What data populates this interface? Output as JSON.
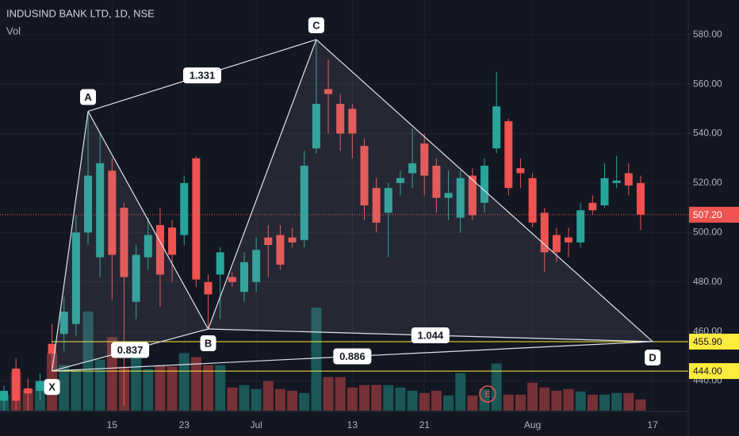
{
  "chart_data": {
    "type": "candlestick",
    "title": "INDUSIND BANK LTD, 1D, NSE",
    "subtitle": "Vol",
    "categories": [
      null,
      null,
      null,
      null,
      null,
      null,
      null,
      null,
      null,
      "15",
      null,
      null,
      null,
      null,
      null,
      "23",
      null,
      null,
      null,
      null,
      null,
      "Jul",
      null,
      null,
      null,
      null,
      null,
      null,
      null,
      "13",
      null,
      null,
      null,
      null,
      null,
      "21",
      null,
      null,
      null,
      null,
      null,
      null,
      null,
      null,
      "Aug",
      null,
      null,
      null,
      null,
      null,
      null,
      null,
      null,
      null,
      "17"
    ],
    "open": [
      432,
      445,
      437,
      436,
      455,
      459,
      463,
      500,
      490,
      525,
      510,
      472,
      490,
      503,
      502,
      499,
      530,
      480,
      483,
      482,
      476,
      480,
      498,
      499,
      498,
      497,
      534,
      558,
      552,
      550,
      535,
      518,
      508,
      520,
      524,
      536,
      527,
      514,
      506,
      523,
      512,
      534,
      545,
      526,
      522,
      508,
      499,
      498,
      496,
      512,
      511,
      520,
      524,
      520,
      null
    ],
    "high": [
      438,
      449,
      441,
      443,
      463,
      474,
      507,
      549,
      540,
      530,
      512,
      495,
      506,
      510,
      505,
      523,
      531,
      483,
      494,
      484,
      492,
      498,
      503,
      503,
      502,
      533,
      578,
      570,
      556,
      552,
      538,
      522,
      520,
      525,
      542,
      540,
      530,
      525,
      525,
      526,
      530,
      565,
      546,
      530,
      524,
      510,
      502,
      502,
      512,
      515,
      528,
      531,
      528,
      523,
      null
    ],
    "low": [
      428,
      428,
      428,
      432,
      444,
      452,
      458,
      495,
      482,
      473,
      430,
      465,
      485,
      470,
      480,
      495,
      478,
      461,
      465,
      478,
      472,
      476,
      482,
      485,
      494,
      494,
      532,
      540,
      533,
      530,
      505,
      500,
      490,
      515,
      518,
      515,
      508,
      505,
      500,
      505,
      508,
      532,
      515,
      518,
      502,
      484,
      488,
      490,
      494,
      507,
      510,
      518,
      515,
      501,
      null
    ],
    "close": [
      436,
      432,
      435,
      440,
      451,
      468,
      500,
      523,
      528,
      491,
      482,
      491,
      499,
      483,
      491,
      520,
      481,
      475,
      492,
      480,
      488,
      493,
      495,
      487,
      496,
      527,
      552,
      556,
      540,
      540,
      511,
      504,
      518,
      522,
      528,
      523,
      514,
      516,
      522,
      507,
      527,
      551,
      518,
      524,
      504,
      492,
      492,
      496,
      509,
      509,
      522,
      521,
      519,
      507.2,
      null
    ],
    "volume": [
      20,
      49,
      27,
      37,
      72,
      57,
      52,
      124,
      64,
      92,
      55,
      72,
      52,
      57,
      55,
      72,
      67,
      57,
      57,
      29,
      32,
      27,
      37,
      27,
      25,
      22,
      129,
      42,
      42,
      29,
      32,
      32,
      32,
      29,
      25,
      22,
      25,
      19,
      47,
      19,
      27,
      59,
      20,
      20,
      35,
      29,
      25,
      27,
      24,
      20,
      20,
      22,
      22,
      14,
      null
    ],
    "up_color": "#26a69a",
    "down_color": "#ef5350",
    "ylim": [
      428,
      594
    ],
    "yticks": [
      {
        "value": 440,
        "label": "440.00"
      },
      {
        "value": 460,
        "label": "460.00"
      },
      {
        "value": 480,
        "label": "480.00"
      },
      {
        "value": 500,
        "label": "500.00"
      },
      {
        "value": 520,
        "label": "520.00"
      },
      {
        "value": 540,
        "label": "540.00"
      },
      {
        "value": 560,
        "label": "560.00"
      },
      {
        "value": 580,
        "label": "580.00"
      }
    ],
    "grid": true,
    "pattern": {
      "points": [
        {
          "label": "X",
          "x": 4,
          "value": 444
        },
        {
          "label": "A",
          "x": 7,
          "value": 549
        },
        {
          "label": "B",
          "x": 17,
          "value": 461
        },
        {
          "label": "C",
          "x": 26,
          "value": 578
        },
        {
          "label": "D",
          "x": 54,
          "value": 455.9
        }
      ],
      "ratios": [
        1.331,
        0.837,
        1.044,
        0.886
      ]
    },
    "levels": [
      {
        "value": 455.9,
        "label": "455.90",
        "color": "#ffeb3b"
      },
      {
        "value": 444,
        "label": "444.00",
        "color": "#ffeb3b"
      }
    ],
    "last_price": {
      "value": 507.2,
      "label": "507.20",
      "color": "#ef5350"
    },
    "event_marker": "E"
  }
}
